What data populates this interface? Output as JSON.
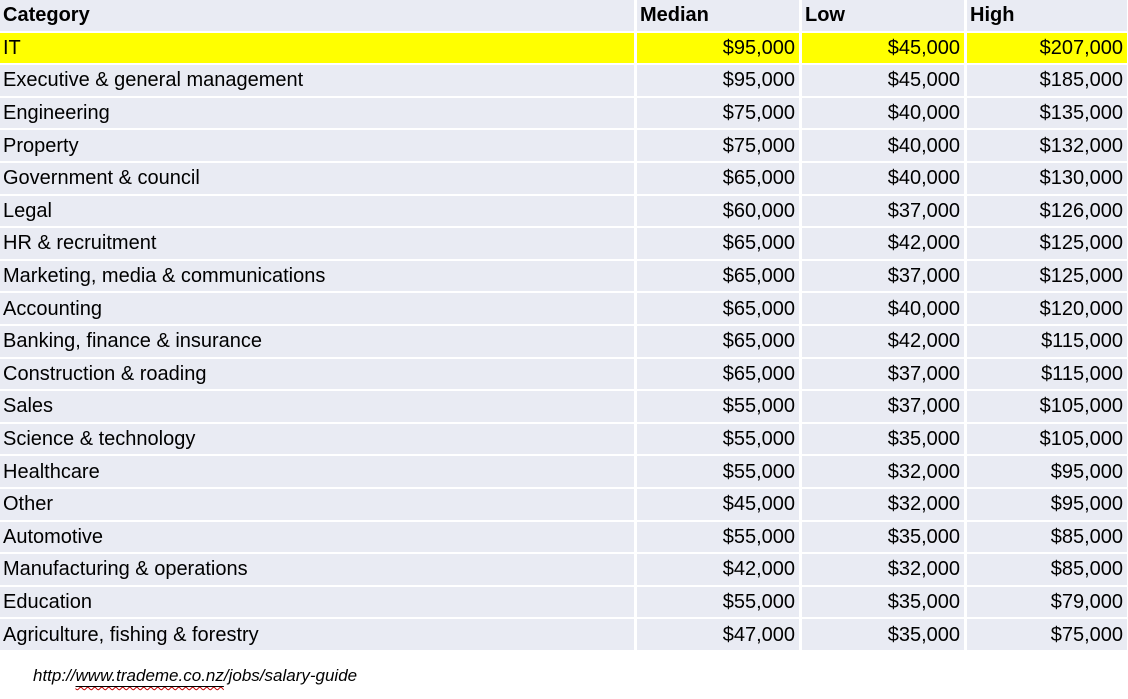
{
  "colors": {
    "row_background": "#E9EBF3",
    "highlight_row": "#FFFF00",
    "text": "#000000",
    "spellcheck_squiggle": "#C00000"
  },
  "table": {
    "headers": {
      "category": "Category",
      "median": "Median",
      "low": "Low",
      "high": "High"
    },
    "rows": [
      {
        "category": "IT",
        "median": "$95,000",
        "low": "$45,000",
        "high": "$207,000",
        "highlight": true
      },
      {
        "category": "Executive & general management",
        "median": "$95,000",
        "low": "$45,000",
        "high": "$185,000",
        "highlight": false
      },
      {
        "category": "Engineering",
        "median": "$75,000",
        "low": "$40,000",
        "high": "$135,000",
        "highlight": false
      },
      {
        "category": "Property",
        "median": "$75,000",
        "low": "$40,000",
        "high": "$132,000",
        "highlight": false
      },
      {
        "category": "Government & council",
        "median": "$65,000",
        "low": "$40,000",
        "high": "$130,000",
        "highlight": false
      },
      {
        "category": "Legal",
        "median": "$60,000",
        "low": "$37,000",
        "high": "$126,000",
        "highlight": false
      },
      {
        "category": "HR & recruitment",
        "median": "$65,000",
        "low": "$42,000",
        "high": "$125,000",
        "highlight": false
      },
      {
        "category": "Marketing, media & communications",
        "median": "$65,000",
        "low": "$37,000",
        "high": "$125,000",
        "highlight": false
      },
      {
        "category": "Accounting",
        "median": "$65,000",
        "low": "$40,000",
        "high": "$120,000",
        "highlight": false
      },
      {
        "category": "Banking, finance & insurance",
        "median": "$65,000",
        "low": "$42,000",
        "high": "$115,000",
        "highlight": false
      },
      {
        "category": "Construction & roading",
        "median": "$65,000",
        "low": "$37,000",
        "high": "$115,000",
        "highlight": false
      },
      {
        "category": "Sales",
        "median": "$55,000",
        "low": "$37,000",
        "high": "$105,000",
        "highlight": false
      },
      {
        "category": "Science & technology",
        "median": "$55,000",
        "low": "$35,000",
        "high": "$105,000",
        "highlight": false
      },
      {
        "category": "Healthcare",
        "median": "$55,000",
        "low": "$32,000",
        "high": "$95,000",
        "highlight": false
      },
      {
        "category": "Other",
        "median": "$45,000",
        "low": "$32,000",
        "high": "$95,000",
        "highlight": false
      },
      {
        "category": "Automotive",
        "median": "$55,000",
        "low": "$35,000",
        "high": "$85,000",
        "highlight": false
      },
      {
        "category": "Manufacturing & operations",
        "median": "$42,000",
        "low": "$32,000",
        "high": "$85,000",
        "highlight": false
      },
      {
        "category": "Education",
        "median": "$55,000",
        "low": "$35,000",
        "high": "$79,000",
        "highlight": false
      },
      {
        "category": "Agriculture, fishing & forestry",
        "median": "$47,000",
        "low": "$35,000",
        "high": "$75,000",
        "highlight": false
      }
    ]
  },
  "footer": {
    "url_prefix": "http://",
    "url_link": "www.trademe.co.nz",
    "url_suffix": "/jobs/salary-guide"
  },
  "chart_data": {
    "type": "table",
    "title": "",
    "columns": [
      "Category",
      "Median",
      "Low",
      "High"
    ],
    "rows": [
      [
        "IT",
        95000,
        45000,
        207000
      ],
      [
        "Executive & general management",
        95000,
        45000,
        185000
      ],
      [
        "Engineering",
        75000,
        40000,
        135000
      ],
      [
        "Property",
        75000,
        40000,
        132000
      ],
      [
        "Government & council",
        65000,
        40000,
        130000
      ],
      [
        "Legal",
        60000,
        37000,
        126000
      ],
      [
        "HR & recruitment",
        65000,
        42000,
        125000
      ],
      [
        "Marketing, media & communications",
        65000,
        37000,
        125000
      ],
      [
        "Accounting",
        65000,
        40000,
        120000
      ],
      [
        "Banking, finance & insurance",
        65000,
        42000,
        115000
      ],
      [
        "Construction & roading",
        65000,
        37000,
        115000
      ],
      [
        "Sales",
        55000,
        37000,
        105000
      ],
      [
        "Science & technology",
        55000,
        35000,
        105000
      ],
      [
        "Healthcare",
        55000,
        32000,
        95000
      ],
      [
        "Other",
        45000,
        32000,
        95000
      ],
      [
        "Automotive",
        55000,
        35000,
        85000
      ],
      [
        "Manufacturing & operations",
        42000,
        32000,
        85000
      ],
      [
        "Education",
        55000,
        35000,
        79000
      ],
      [
        "Agriculture, fishing & forestry",
        47000,
        35000,
        75000
      ]
    ],
    "highlighted_row": "IT",
    "currency": "NZD ($)",
    "annotations": [
      "http://www.trademe.co.nz/jobs/salary-guide"
    ]
  }
}
